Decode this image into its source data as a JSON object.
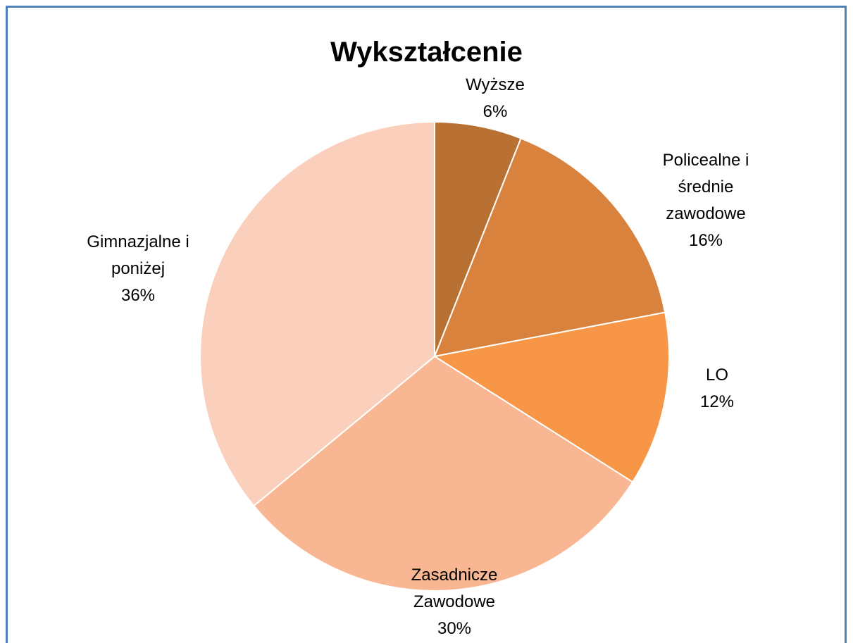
{
  "chart_data": {
    "type": "pie",
    "title": "Wykształcenie",
    "categories": [
      "Wyższe",
      "Policealne i średnie zawodowe",
      "LO",
      "Zasadnicze Zawodowe",
      "Gimnazjalne i poniżej"
    ],
    "values": [
      6,
      16,
      12,
      30,
      36
    ],
    "value_labels": [
      "6%",
      "16%",
      "12%",
      "30%",
      "36%"
    ],
    "colors": [
      "#b87033",
      "#d9823e",
      "#f79646",
      "#f8b692",
      "#fad0bc"
    ]
  }
}
